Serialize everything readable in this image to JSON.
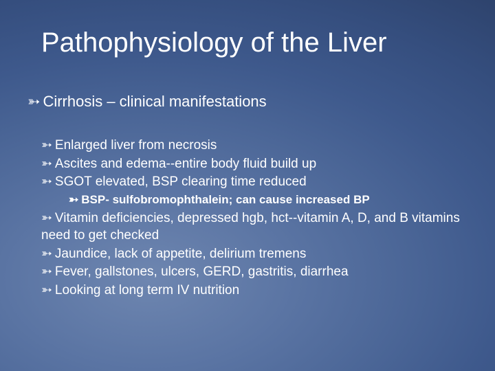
{
  "slide": {
    "background": {
      "gradient_center_color": "#6e86b0",
      "gradient_edge_color": "#2c4068"
    },
    "title": {
      "text": "Pathophysiology of the Liver",
      "fontsize": 40,
      "color": "#ffffff"
    },
    "bullet_glyph": "➳",
    "level1": {
      "text": "Cirrhosis – clinical manifestations",
      "fontsize": 22
    },
    "body_items": [
      {
        "level": 2,
        "text": "Enlarged liver from necrosis"
      },
      {
        "level": 2,
        "text": "Ascites and edema--entire body fluid build up"
      },
      {
        "level": 2,
        "text": "SGOT elevated, BSP clearing time reduced"
      },
      {
        "level": 3,
        "text": "BSP- sulfobromophthalein; can cause increased BP"
      },
      {
        "level": 2,
        "text": "Vitamin deficiencies, depressed hgb, hct--vitamin A, D, and B vitamins need to get checked"
      },
      {
        "level": 2,
        "text": "Jaundice, lack of appetite, delirium tremens"
      },
      {
        "level": 2,
        "text": "Fever, gallstones, ulcers, GERD, gastritis, diarrhea"
      },
      {
        "level": 2,
        "text": "Looking at long term IV nutrition"
      }
    ],
    "level2_fontsize": 19,
    "level3_fontsize": 17,
    "text_color": "#ffffff"
  }
}
